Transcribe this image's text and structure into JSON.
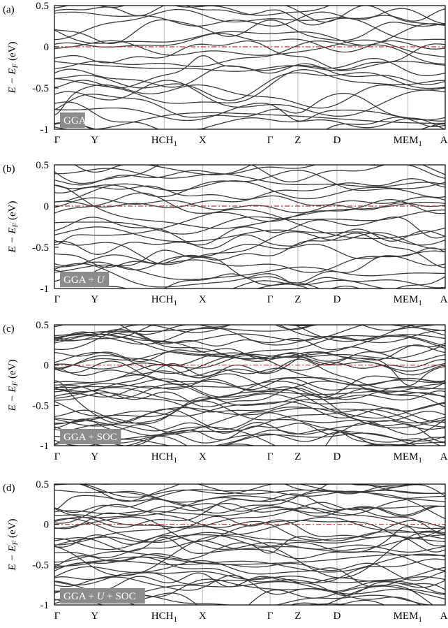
{
  "chart_data": [
    {
      "type": "line",
      "panel_label": "(a)",
      "method_label": "GGA",
      "ylabel": "E − E_F (eV)",
      "ylim": [
        -1,
        0.5
      ],
      "yticks": [
        "0.5",
        "0",
        "-0.5",
        "-1"
      ],
      "kpoints": [
        "Γ",
        "Y",
        "HCH1",
        "X",
        "Γ",
        "Z",
        "D",
        "MEM1",
        "A"
      ],
      "fermi_level": 0,
      "band_count_visible": 24,
      "seed": 11
    },
    {
      "type": "line",
      "panel_label": "(b)",
      "method_label": "GGA + U",
      "ylabel": "E − E_F (eV)",
      "ylim": [
        -1,
        0.5
      ],
      "yticks": [
        "0.5",
        "0",
        "-0.5",
        "-1"
      ],
      "kpoints": [
        "Γ",
        "Y",
        "HCH1",
        "X",
        "Γ",
        "Z",
        "D",
        "MEM1",
        "A"
      ],
      "fermi_level": 0,
      "band_count_visible": 26,
      "seed": 23
    },
    {
      "type": "line",
      "panel_label": "(c)",
      "method_label": "GGA + SOC",
      "ylabel": "E − E_F (eV)",
      "ylim": [
        -1,
        0.5
      ],
      "yticks": [
        "0.5",
        "0",
        "-0.5",
        "-1"
      ],
      "kpoints": [
        "Γ",
        "Y",
        "HCH1",
        "X",
        "Γ",
        "Z",
        "D",
        "MEM1",
        "A"
      ],
      "fermi_level": 0,
      "band_count_visible": 44,
      "seed": 37
    },
    {
      "type": "line",
      "panel_label": "(d)",
      "method_label": "GGA + U + SOC",
      "ylabel": "E − E_F (eV)",
      "ylim": [
        -1,
        0.5
      ],
      "yticks": [
        "0.5",
        "0",
        "-0.5",
        "-1"
      ],
      "kpoints": [
        "Γ",
        "Y",
        "HCH1",
        "X",
        "Γ",
        "Z",
        "D",
        "MEM1",
        "A"
      ],
      "fermi_level": 0,
      "band_count_visible": 40,
      "seed": 53
    }
  ],
  "colors": {
    "band": "#3a3a3a",
    "fermi": "#c8303a",
    "grid": "#bdbdbd",
    "badge_bg": "#8c8c8c",
    "axis": "#000000"
  }
}
